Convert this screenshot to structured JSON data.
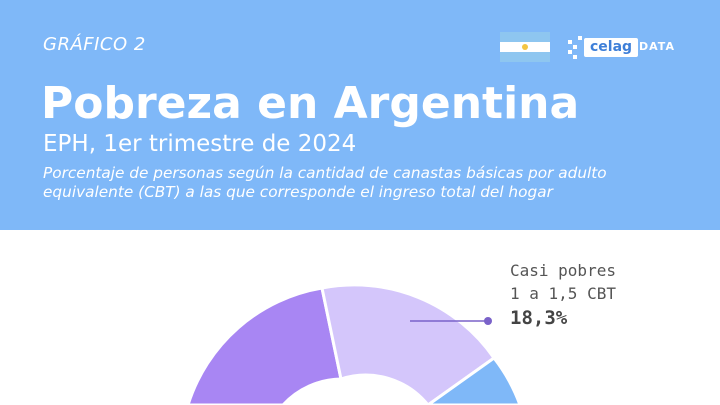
{
  "header": {
    "figure_label": "GRÁFICO 2",
    "title": "Pobreza en Argentina",
    "subtitle": "EPH, 1er trimestre de 2024",
    "description": "Porcentaje de personas según la cantidad de canastas básicas por adulto equivalente (CBT) a las que corresponde el ingreso total del hogar",
    "logo_text": "celag",
    "logo_suffix": "DATA",
    "flag_icon": "argentina-flag-icon"
  },
  "colors": {
    "header_bg": "#7fb8f8",
    "segment_purple": "#a886f3",
    "segment_lilac": "#d4c6fb",
    "segment_blue": "#7fb8f8",
    "leader": "#7a62c9"
  },
  "chart_data": {
    "type": "pie",
    "donut": true,
    "slices": [
      {
        "name": "Casi pobres",
        "range": "1 a 1,5 CBT",
        "value": 18.3,
        "value_label": "18,3%",
        "color": "#d4c6fb"
      }
    ]
  }
}
